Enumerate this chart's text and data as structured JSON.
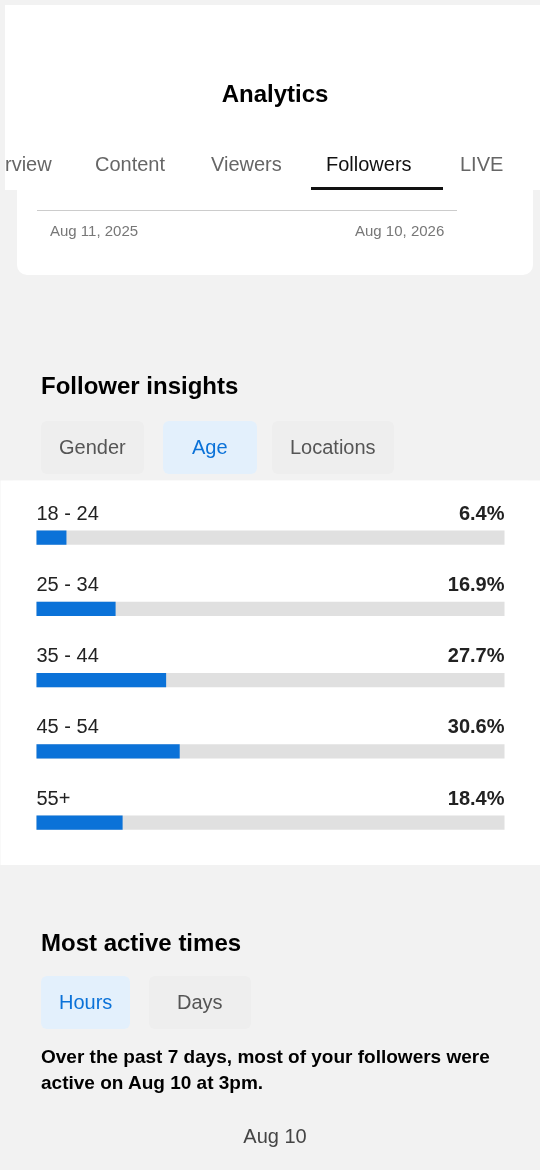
{
  "chart_data": {
    "type": "bar",
    "orientation": "horizontal",
    "title": "Follower insights",
    "categories": [
      "18 - 24",
      "25 - 34",
      "35 - 44",
      "45 - 54",
      "55+"
    ],
    "values": [
      6.4,
      16.9,
      27.7,
      30.6,
      18.4
    ],
    "value_labels": [
      "6.4%",
      "16.9%",
      "27.7%",
      "30.6%",
      "18.4%"
    ],
    "color": "#0b72d8",
    "xlim": [
      0,
      100
    ],
    "tick_labels": false,
    "grid": false,
    "annotations": [
      "Analytics",
      "rview",
      "Content",
      "Viewers",
      "Followers",
      "LIVE",
      "Aug 11, 2025",
      "Aug 10, 2026",
      "Gender",
      "Age",
      "Locations",
      "Most active times",
      "Hours",
      "Days",
      "Over the past 7 days, most of your followers were active on Aug 10 at 3pm.",
      "Aug 10"
    ]
  }
}
